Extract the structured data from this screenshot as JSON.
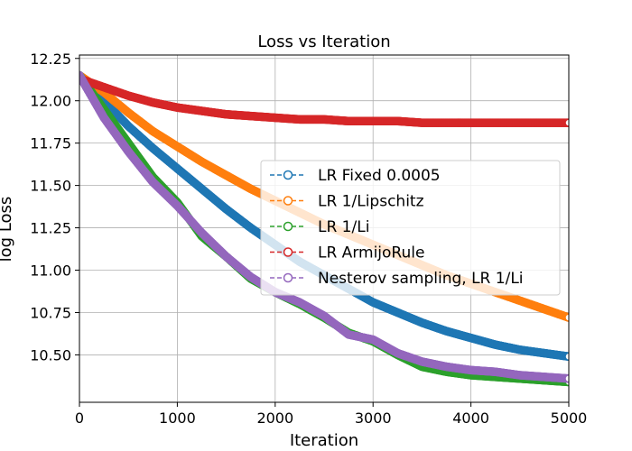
{
  "chart_data": {
    "type": "line",
    "title": "Loss vs Iteration",
    "xlabel": "Iteration",
    "ylabel": "log Loss",
    "xlim": [
      0,
      5000
    ],
    "ylim": [
      10.22,
      12.27
    ],
    "xticks": [
      0,
      1000,
      2000,
      3000,
      4000,
      5000
    ],
    "xtick_labels": [
      "0",
      "1000",
      "2000",
      "3000",
      "4000",
      "5000"
    ],
    "yticks": [
      10.5,
      10.75,
      11.0,
      11.25,
      11.5,
      11.75,
      12.0,
      12.25
    ],
    "ytick_labels": [
      "10.50",
      "10.75",
      "11.00",
      "11.25",
      "11.50",
      "11.75",
      "12.00",
      "12.25"
    ],
    "grid": true,
    "legend_position": "center-right",
    "marker": "hollow-circle",
    "line_style": "dashed",
    "series": [
      {
        "name": "LR Fixed 0.0005",
        "color": "#1f77b4",
        "x": [
          0,
          250,
          500,
          750,
          1000,
          1250,
          1500,
          1750,
          2000,
          2250,
          2500,
          2750,
          3000,
          3250,
          3500,
          3750,
          4000,
          4250,
          4500,
          4750,
          5000
        ],
        "y": [
          12.15,
          12.0,
          11.85,
          11.72,
          11.6,
          11.48,
          11.36,
          11.25,
          11.15,
          11.05,
          10.97,
          10.89,
          10.81,
          10.75,
          10.69,
          10.64,
          10.6,
          10.56,
          10.53,
          10.51,
          10.49
        ]
      },
      {
        "name": "LR 1/Lipschitz",
        "color": "#ff7f0e",
        "x": [
          0,
          250,
          500,
          750,
          1000,
          1250,
          1500,
          1750,
          2000,
          2250,
          2500,
          2750,
          3000,
          3250,
          3500,
          3750,
          4000,
          4250,
          4500,
          4750,
          5000
        ],
        "y": [
          12.15,
          12.05,
          11.93,
          11.82,
          11.73,
          11.64,
          11.56,
          11.48,
          11.41,
          11.34,
          11.27,
          11.21,
          11.15,
          11.09,
          11.03,
          10.97,
          10.92,
          10.87,
          10.82,
          10.77,
          10.72
        ]
      },
      {
        "name": "LR 1/Li",
        "color": "#2ca02c",
        "x": [
          0,
          250,
          500,
          750,
          1000,
          1250,
          1500,
          1750,
          2000,
          2250,
          2500,
          2750,
          3000,
          3250,
          3500,
          3750,
          4000,
          4250,
          4500,
          4750,
          5000
        ],
        "y": [
          12.15,
          11.95,
          11.75,
          11.55,
          11.4,
          11.2,
          11.08,
          10.95,
          10.87,
          10.8,
          10.72,
          10.63,
          10.58,
          10.5,
          10.43,
          10.4,
          10.38,
          10.37,
          10.36,
          10.35,
          10.34
        ]
      },
      {
        "name": "LR ArmijoRule",
        "color": "#d62728",
        "x": [
          0,
          250,
          500,
          750,
          1000,
          1250,
          1500,
          1750,
          2000,
          2250,
          2500,
          2750,
          3000,
          3250,
          3500,
          3750,
          4000,
          4250,
          4500,
          4750,
          5000
        ],
        "y": [
          12.13,
          12.08,
          12.03,
          11.99,
          11.96,
          11.94,
          11.92,
          11.91,
          11.9,
          11.89,
          11.89,
          11.88,
          11.88,
          11.88,
          11.87,
          11.87,
          11.87,
          11.87,
          11.87,
          11.87,
          11.87
        ]
      },
      {
        "name": "Nesterov sampling, LR 1/Li",
        "color": "#9467bd",
        "x": [
          0,
          250,
          500,
          750,
          1000,
          1250,
          1500,
          1750,
          2000,
          2250,
          2500,
          2750,
          3000,
          3250,
          3500,
          3750,
          4000,
          4250,
          4500,
          4750,
          5000
        ],
        "y": [
          12.15,
          11.9,
          11.7,
          11.52,
          11.38,
          11.22,
          11.08,
          10.96,
          10.87,
          10.81,
          10.73,
          10.62,
          10.59,
          10.51,
          10.46,
          10.43,
          10.41,
          10.4,
          10.38,
          10.37,
          10.36
        ]
      }
    ]
  }
}
